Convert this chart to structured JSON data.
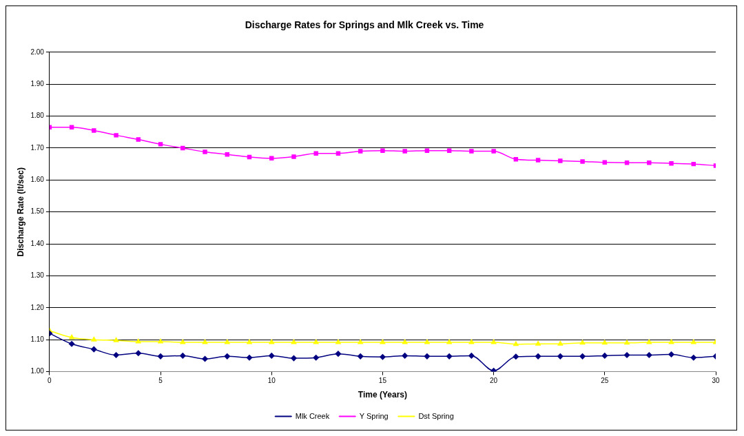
{
  "chart_data": {
    "type": "line",
    "title": "Discharge Rates for Springs and Mlk Creek vs. Time",
    "xlabel": "Time (Years)",
    "ylabel": "Discharge Rate (lt/sec)",
    "x": [
      0,
      1,
      2,
      3,
      4,
      5,
      6,
      7,
      8,
      9,
      10,
      11,
      12,
      13,
      14,
      15,
      16,
      17,
      18,
      19,
      20,
      21,
      22,
      23,
      24,
      25,
      26,
      27,
      28,
      29,
      30
    ],
    "xlim": [
      0,
      30
    ],
    "xticks": [
      0,
      5,
      10,
      15,
      20,
      25,
      30
    ],
    "ylim": [
      1,
      2
    ],
    "yticks": [
      {
        "value": 1,
        "label": "1.00"
      },
      {
        "value": 1.1,
        "label": "1.10"
      },
      {
        "value": 1.2,
        "label": "1.20"
      },
      {
        "value": 1.3,
        "label": "1.30"
      },
      {
        "value": 1.4,
        "label": "1.40"
      },
      {
        "value": 1.5,
        "label": "1.50"
      },
      {
        "value": 1.6,
        "label": "1.60"
      },
      {
        "value": 1.7,
        "label": "1.70"
      },
      {
        "value": 1.8,
        "label": "1.80"
      },
      {
        "value": 1.9,
        "label": "1.90"
      },
      {
        "value": 2,
        "label": "2.00"
      }
    ],
    "grid": "y",
    "legend": "bottom",
    "series": [
      {
        "name": "Mlk Creek",
        "color": "#000080",
        "marker": "diamond",
        "values": [
          1.12,
          1.087,
          1.07,
          1.052,
          1.058,
          1.048,
          1.05,
          1.04,
          1.048,
          1.044,
          1.05,
          1.042,
          1.044,
          1.056,
          1.048,
          1.046,
          1.05,
          1.048,
          1.048,
          1.05,
          1.003,
          1.047,
          1.048,
          1.048,
          1.048,
          1.05,
          1.052,
          1.052,
          1.054,
          1.044,
          1.048
        ]
      },
      {
        "name": "Y Spring",
        "color": "#ff00ff",
        "marker": "square",
        "values": [
          1.765,
          1.765,
          1.755,
          1.74,
          1.727,
          1.712,
          1.7,
          1.688,
          1.68,
          1.672,
          1.668,
          1.673,
          1.683,
          1.683,
          1.69,
          1.692,
          1.69,
          1.692,
          1.692,
          1.69,
          1.69,
          1.665,
          1.662,
          1.66,
          1.658,
          1.655,
          1.654,
          1.654,
          1.652,
          1.65,
          1.645
        ]
      },
      {
        "name": "Dst Spring",
        "color": "#ffff00",
        "marker": "triangle",
        "values": [
          1.128,
          1.107,
          1.1,
          1.098,
          1.094,
          1.094,
          1.092,
          1.092,
          1.092,
          1.092,
          1.092,
          1.092,
          1.092,
          1.092,
          1.092,
          1.092,
          1.092,
          1.092,
          1.092,
          1.092,
          1.092,
          1.086,
          1.087,
          1.087,
          1.09,
          1.09,
          1.09,
          1.092,
          1.092,
          1.092,
          1.092
        ]
      }
    ]
  }
}
